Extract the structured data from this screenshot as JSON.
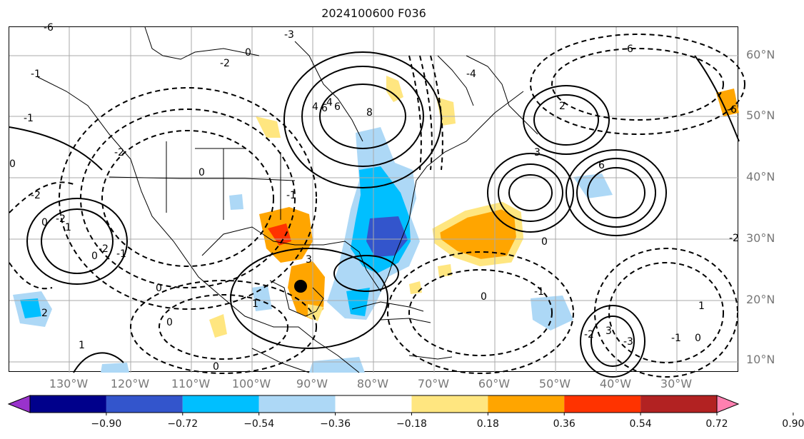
{
  "title": "2024100600 F036",
  "lat_labels": [
    "60°N",
    "50°N",
    "40°N",
    "30°N",
    "20°N",
    "10°N"
  ],
  "lon_labels": [
    "130°W",
    "120°W",
    "110°W",
    "100°W",
    "90°W",
    "80°W",
    "70°W",
    "60°W",
    "50°W",
    "40°W",
    "30°W"
  ],
  "colorbar": {
    "ticks": [
      "−0.90",
      "−0.72",
      "−0.54",
      "−0.36",
      "−0.18",
      "0.18",
      "0.36",
      "0.54",
      "0.72",
      "0.90"
    ],
    "colors": [
      "#9932cc",
      "#00008b",
      "#3355cc",
      "#00bfff",
      "#add8f6",
      "#ffffff",
      "#ffe680",
      "#ffa500",
      "#ff3300",
      "#b22222",
      "#ff80b0"
    ]
  },
  "contour_labels": [
    "-6",
    "6",
    "4",
    "6",
    "-6",
    "-3",
    "-2",
    "-1",
    "0",
    "-2",
    "8",
    "4",
    "2",
    "0",
    "-1",
    "-2",
    "-1",
    "0",
    "-2",
    "0",
    "0",
    "1",
    "-2",
    "-1",
    "0",
    "0",
    "1",
    "2",
    "3",
    "-4",
    "-6",
    "6",
    "3",
    "-3",
    "-2",
    "-1",
    "0",
    "1",
    "0",
    "0",
    "1",
    "3",
    "-1",
    "0",
    "-2"
  ]
}
